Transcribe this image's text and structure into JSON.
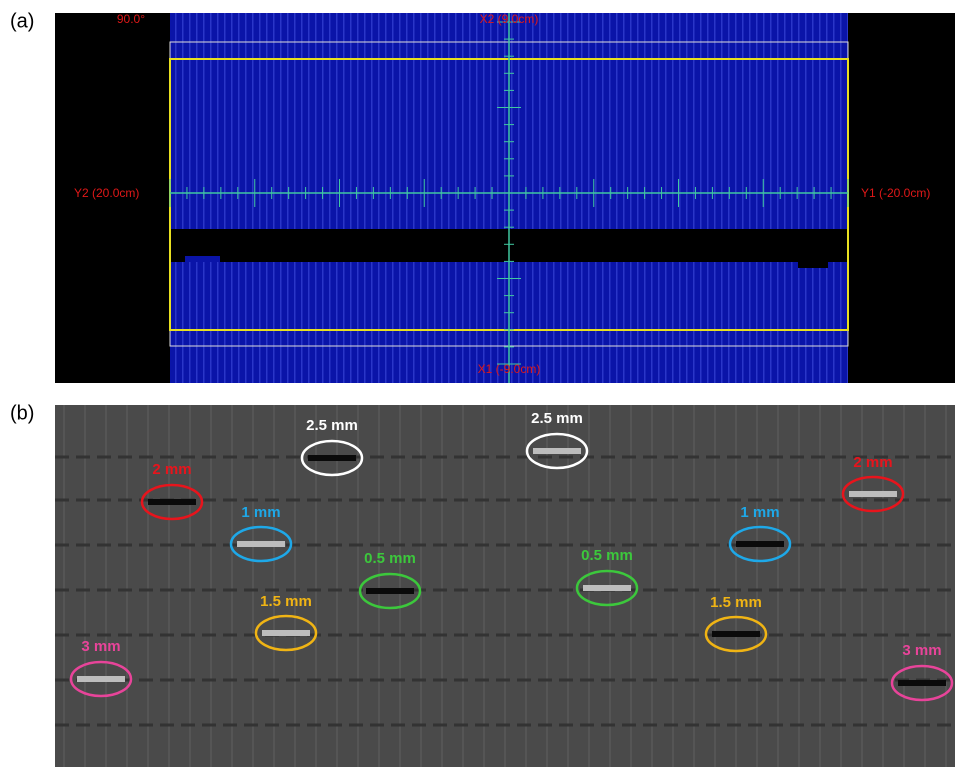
{
  "panel_a": {
    "label": "(a)",
    "angle": "90.0°",
    "x2": "X2 (9.0cm)",
    "y2": "Y2 (20.0cm)",
    "y1": "Y1 (-20.0cm)",
    "x1": "X1 (-9.0cm)"
  },
  "panel_b": {
    "label": "(b)",
    "annotations": [
      {
        "label": "2.5 mm",
        "color": "#ffffff"
      },
      {
        "label": "2.5 mm",
        "color": "#ffffff"
      },
      {
        "label": "2 mm",
        "color": "#e8141c"
      },
      {
        "label": "2 mm",
        "color": "#e8141c"
      },
      {
        "label": "1 mm",
        "color": "#1ea8e8"
      },
      {
        "label": "1 mm",
        "color": "#1ea8e8"
      },
      {
        "label": "0.5 mm",
        "color": "#3cc83c"
      },
      {
        "label": "0.5 mm",
        "color": "#3cc83c"
      },
      {
        "label": "1.5 mm",
        "color": "#f0b414"
      },
      {
        "label": "1.5 mm",
        "color": "#f0b414"
      },
      {
        "label": "3 mm",
        "color": "#e8449a"
      },
      {
        "label": "3 mm",
        "color": "#e8449a"
      }
    ]
  }
}
